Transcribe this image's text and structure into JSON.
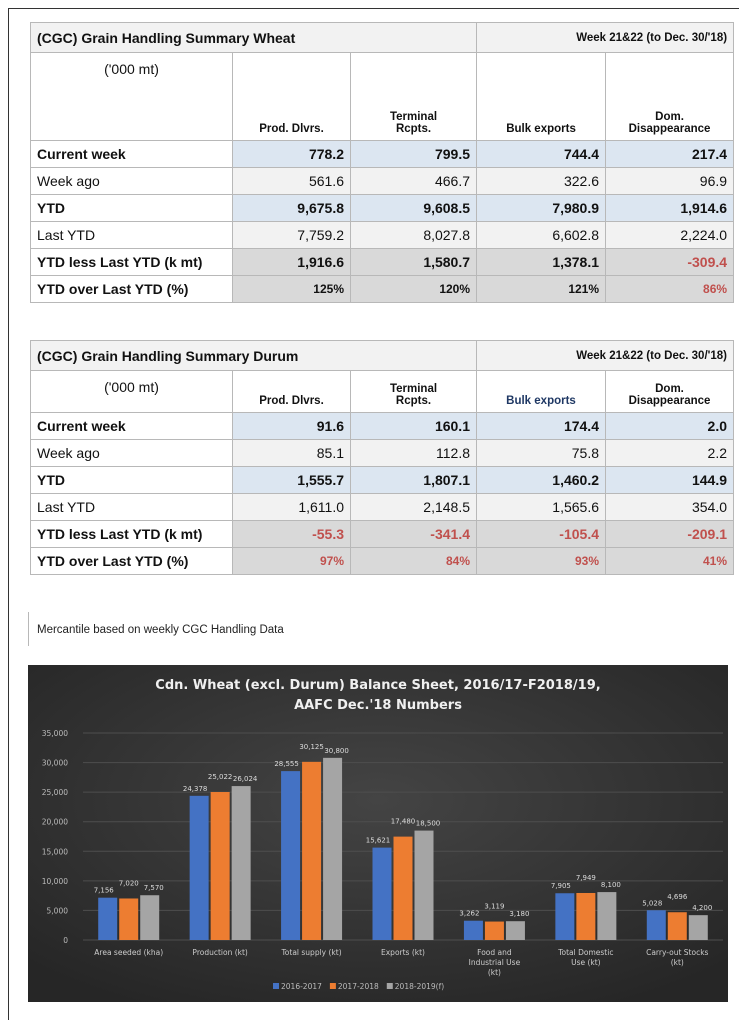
{
  "tables": [
    {
      "title": "(CGC) Grain Handling Summary Wheat",
      "week": "Week 21&22  (to Dec. 30/'18)",
      "unit": "('000 mt)",
      "columns": [
        [
          "Prod. Dlvrs."
        ],
        [
          "Terminal",
          "Rcpts."
        ],
        [
          "Bulk exports"
        ],
        [
          "Dom.",
          "Disappearance"
        ]
      ],
      "rows": [
        {
          "label": "Current week",
          "values": [
            "778.2",
            "799.5",
            "744.4",
            "217.4"
          ]
        },
        {
          "label": "Week ago",
          "values": [
            "561.6",
            "466.7",
            "322.6",
            "96.9"
          ]
        },
        {
          "label": "YTD",
          "values": [
            "9,675.8",
            "9,608.5",
            "7,980.9",
            "1,914.6"
          ]
        },
        {
          "label": "Last YTD",
          "values": [
            "7,759.2",
            "8,027.8",
            "6,602.8",
            "2,224.0"
          ]
        },
        {
          "label": "YTD less Last YTD (k mt)",
          "values": [
            "1,916.6",
            "1,580.7",
            "1,378.1",
            "-309.4"
          ]
        },
        {
          "label": "YTD over Last YTD (%)",
          "values": [
            "125%",
            "120%",
            "121%",
            "86%"
          ]
        }
      ]
    },
    {
      "title": "(CGC) Grain Handling Summary Durum",
      "week": "Week 21&22  (to Dec. 30/'18)",
      "unit": "('000 mt)",
      "columns": [
        [
          "Prod. Dlvrs."
        ],
        [
          "Terminal",
          "Rcpts."
        ],
        [
          "Bulk exports"
        ],
        [
          "Dom.",
          "Disappearance"
        ]
      ],
      "rows": [
        {
          "label": "Current week",
          "values": [
            "91.6",
            "160.1",
            "174.4",
            "2.0"
          ]
        },
        {
          "label": "Week ago",
          "values": [
            "85.1",
            "112.8",
            "75.8",
            "2.2"
          ]
        },
        {
          "label": "YTD",
          "values": [
            "1,555.7",
            "1,807.1",
            "1,460.2",
            "144.9"
          ]
        },
        {
          "label": "Last YTD",
          "values": [
            "1,611.0",
            "2,148.5",
            "1,565.6",
            "354.0"
          ]
        },
        {
          "label": "YTD less Last YTD (k mt)",
          "values": [
            "-55.3",
            "-341.4",
            "-105.4",
            "-209.1"
          ]
        },
        {
          "label": "YTD over Last YTD (%)",
          "values": [
            "97%",
            "84%",
            "93%",
            "41%"
          ]
        }
      ]
    }
  ],
  "note": "Mercantile based on weekly CGC Handling Data",
  "chart_data": {
    "type": "bar",
    "title": [
      "Cdn. Wheat (excl. Durum) Balance Sheet, 2016/17-F2018/19,",
      "AAFC Dec.'18 Numbers"
    ],
    "categories": [
      "Area seeded (kha)",
      "Production (kt)",
      "Total supply (kt)",
      "Exports (kt)",
      "Food and Industrial Use (kt)",
      "Total Domestic Use (kt)",
      "Carry-out Stocks (kt)"
    ],
    "series": [
      {
        "name": "2016-2017",
        "color": "#4472c4",
        "values": [
          7156,
          24378,
          28555,
          15621,
          3262,
          7905,
          5028
        ],
        "value_labels": [
          "7,156",
          "24,378",
          "28,555",
          "15,621",
          "3,262",
          "7,905",
          "5,028"
        ]
      },
      {
        "name": "2017-2018",
        "color": "#ed7d31",
        "values": [
          7020,
          25022,
          30125,
          17480,
          3119,
          7949,
          4696
        ],
        "value_labels": [
          "7,020",
          "25,022",
          "30,125",
          "17,480",
          "3,119",
          "7,949",
          "4,696"
        ]
      },
      {
        "name": "2018-2019(f)",
        "color": "#a5a5a5",
        "values": [
          7570,
          26024,
          30800,
          18500,
          3180,
          8100,
          4200
        ],
        "value_labels": [
          "7,570",
          "26,024",
          "30,800",
          "18,500",
          "3,180",
          "8,100",
          "4,200"
        ]
      }
    ],
    "ylim": [
      0,
      35000
    ],
    "yticks": [
      0,
      {
        "value": 5000,
        "label": "5,000"
      },
      {
        "value": 10000,
        "label": "10,000"
      },
      {
        "value": 15000,
        "label": "15,000"
      },
      {
        "value": 20000,
        "label": "20,000"
      },
      {
        "value": 25000,
        "label": "25,000"
      },
      {
        "value": 30000,
        "label": "30,000"
      },
      {
        "value": 35000,
        "label": "35,000"
      }
    ],
    "grid": true,
    "legend": "bottom"
  }
}
